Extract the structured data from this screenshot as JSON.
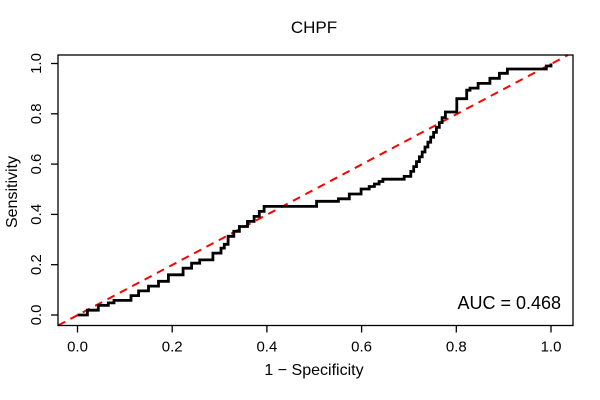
{
  "chart_data": {
    "type": "line",
    "subtype": "roc-step-curve",
    "title": "CHPF",
    "xlabel": "1 − Specificity",
    "ylabel": "Sensitivity",
    "xlim": [
      0,
      1
    ],
    "ylim": [
      0,
      1
    ],
    "x_ticks": [
      0.0,
      0.2,
      0.4,
      0.6,
      0.8,
      1.0
    ],
    "y_ticks": [
      0.0,
      0.2,
      0.4,
      0.6,
      0.8,
      1.0
    ],
    "grid": false,
    "legend": "none",
    "annotation": "AUC = 0.468",
    "auc": 0.468,
    "series": [
      {
        "name": "roc-curve",
        "color": "#000000",
        "line_style": "solid",
        "draw": "step",
        "points": [
          [
            0.0,
            0.0
          ],
          [
            0.021,
            0.019
          ],
          [
            0.044,
            0.038
          ],
          [
            0.065,
            0.048
          ],
          [
            0.077,
            0.058
          ],
          [
            0.113,
            0.077
          ],
          [
            0.129,
            0.096
          ],
          [
            0.15,
            0.115
          ],
          [
            0.171,
            0.134
          ],
          [
            0.192,
            0.16
          ],
          [
            0.223,
            0.186
          ],
          [
            0.241,
            0.206
          ],
          [
            0.258,
            0.219
          ],
          [
            0.286,
            0.246
          ],
          [
            0.303,
            0.266
          ],
          [
            0.31,
            0.281
          ],
          [
            0.318,
            0.313
          ],
          [
            0.33,
            0.333
          ],
          [
            0.342,
            0.352
          ],
          [
            0.359,
            0.372
          ],
          [
            0.373,
            0.392
          ],
          [
            0.384,
            0.412
          ],
          [
            0.394,
            0.432
          ],
          [
            0.505,
            0.452
          ],
          [
            0.551,
            0.462
          ],
          [
            0.574,
            0.481
          ],
          [
            0.599,
            0.501
          ],
          [
            0.616,
            0.511
          ],
          [
            0.627,
            0.521
          ],
          [
            0.637,
            0.531
          ],
          [
            0.645,
            0.54
          ],
          [
            0.69,
            0.551
          ],
          [
            0.704,
            0.571
          ],
          [
            0.71,
            0.59
          ],
          [
            0.716,
            0.61
          ],
          [
            0.722,
            0.629
          ],
          [
            0.728,
            0.648
          ],
          [
            0.734,
            0.668
          ],
          [
            0.74,
            0.687
          ],
          [
            0.746,
            0.707
          ],
          [
            0.752,
            0.726
          ],
          [
            0.758,
            0.746
          ],
          [
            0.764,
            0.765
          ],
          [
            0.77,
            0.785
          ],
          [
            0.777,
            0.807
          ],
          [
            0.801,
            0.86
          ],
          [
            0.822,
            0.894
          ],
          [
            0.829,
            0.902
          ],
          [
            0.846,
            0.921
          ],
          [
            0.871,
            0.941
          ],
          [
            0.891,
            0.961
          ],
          [
            0.908,
            0.978
          ],
          [
            0.99,
            0.99
          ],
          [
            1.0,
            1.0
          ]
        ]
      },
      {
        "name": "chance-diagonal",
        "color": "#FF0000",
        "line_style": "dashed",
        "draw": "straight",
        "points": [
          [
            0,
            0
          ],
          [
            1,
            1
          ]
        ]
      }
    ]
  }
}
